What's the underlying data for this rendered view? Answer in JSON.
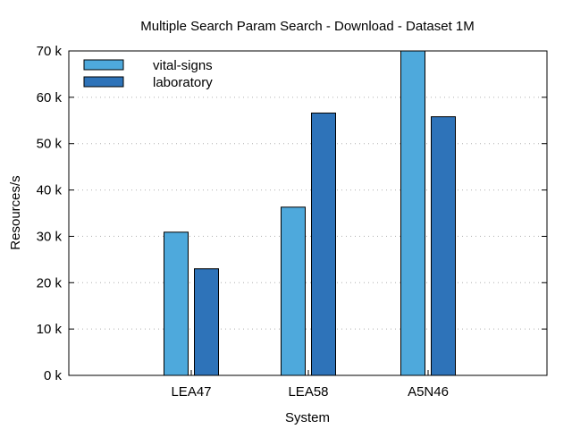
{
  "chart_data": {
    "type": "bar",
    "title": "Multiple Search Param Search - Download - Dataset 1M",
    "xlabel": "System",
    "ylabel": "Resources/s",
    "categories": [
      "LEA47",
      "LEA58",
      "A5N46"
    ],
    "series": [
      {
        "name": "vital-signs",
        "color": "#4ea9dc",
        "values": [
          30900,
          36300,
          70000
        ]
      },
      {
        "name": "laboratory",
        "color": "#2e73b9",
        "values": [
          23000,
          56600,
          55800
        ]
      }
    ],
    "ylim": [
      0,
      70000
    ],
    "yticks": [
      {
        "value": 0,
        "label": "0 k"
      },
      {
        "value": 10000,
        "label": "10 k"
      },
      {
        "value": 20000,
        "label": "20 k"
      },
      {
        "value": 30000,
        "label": "30 k"
      },
      {
        "value": 40000,
        "label": "40 k"
      },
      {
        "value": 50000,
        "label": "50 k"
      },
      {
        "value": 60000,
        "label": "60 k"
      },
      {
        "value": 70000,
        "label": "70 k"
      }
    ],
    "grid": "horizontal-dotted",
    "legend_position": "top-left"
  }
}
